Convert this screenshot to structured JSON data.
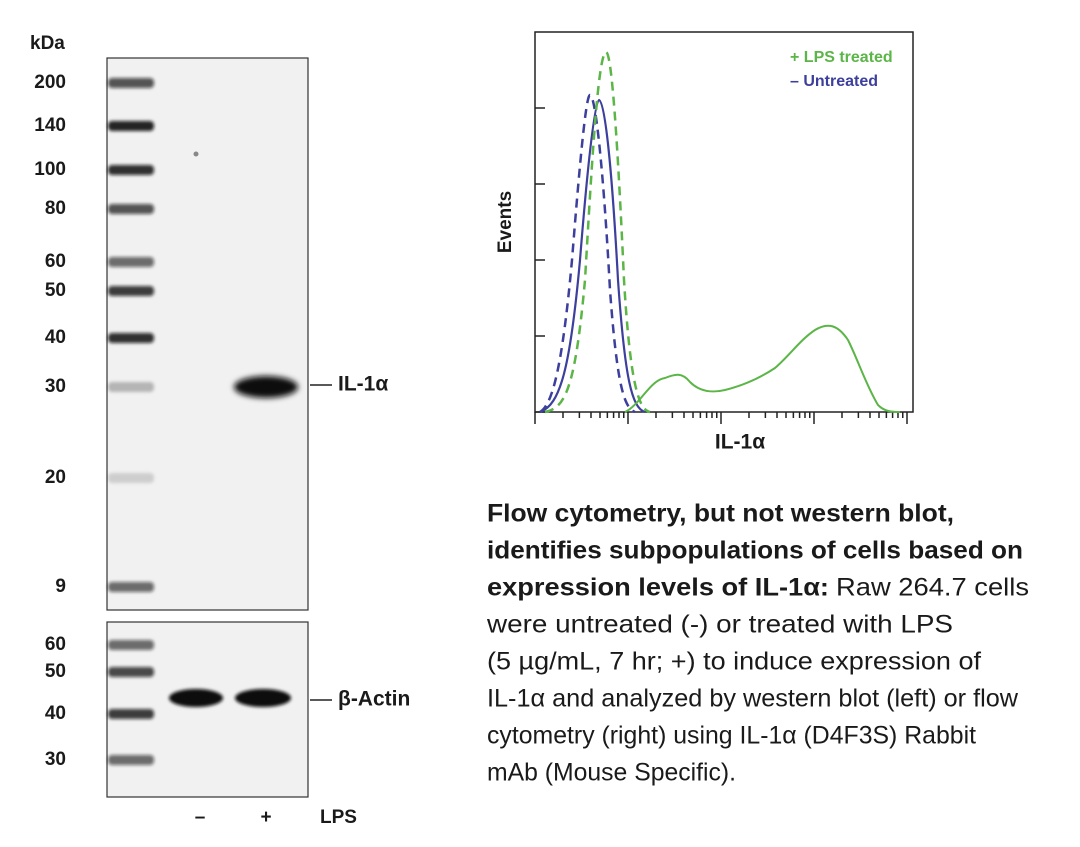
{
  "western_blot": {
    "unit_label": "kDa",
    "main_markers": [
      "200",
      "140",
      "100",
      "80",
      "60",
      "50",
      "40",
      "30",
      "20",
      "9"
    ],
    "main_band_label": "IL-1α",
    "actin_markers": [
      "60",
      "50",
      "40",
      "30"
    ],
    "actin_band_label": "β-Actin",
    "lanes": [
      "–",
      "+"
    ],
    "treatment_label": "LPS"
  },
  "flow_cytometry": {
    "y_label": "Events",
    "x_label": "IL-1α",
    "legend": [
      "+ LPS treated",
      "– Untreated"
    ]
  },
  "caption": {
    "bold": [
      "Flow cytometry, but not western blot,",
      "identifies subpopulations of cells based on",
      "expression levels of IL-1α:"
    ],
    "text": [
      "Raw 264.7 cells",
      "were untreated (-) or treated with LPS",
      "(5 µg/mL, 7 hr; +) to induce expression of",
      "IL-1α and analyzed by western blot (left) or flow",
      "cytometry (right) using IL-1α (D4F3S) Rabbit",
      "mAb (Mouse Specific)."
    ]
  }
}
